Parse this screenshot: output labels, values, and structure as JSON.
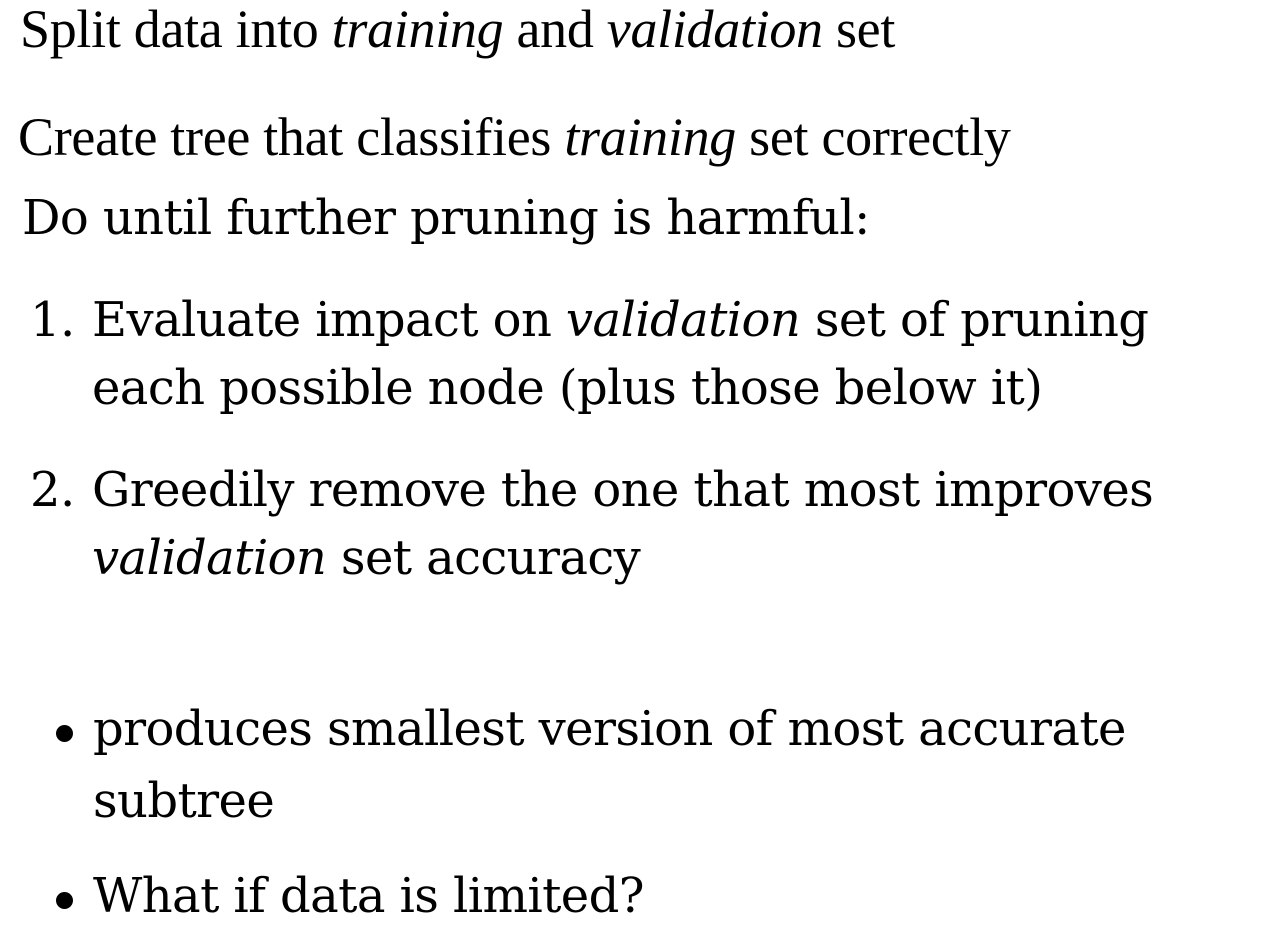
{
  "line1": {
    "a": "Split data into ",
    "b": "training",
    "c": " and ",
    "d": "validation",
    "e": " set"
  },
  "line2": {
    "a": "Create tree that classifies ",
    "b": "training",
    "c": " set correctly"
  },
  "line3": "Do until further pruning is harmful:",
  "steps": [
    {
      "number": "1.",
      "line1_a": "Evaluate impact on ",
      "line1_b": "validation",
      "line1_c": " set of pruning",
      "line2": "each possible node (plus those below it)"
    },
    {
      "number": "2.",
      "line1": "Greedily remove the one that most improves",
      "line2_a": "validation",
      "line2_b": " set accuracy"
    }
  ],
  "bullets": [
    {
      "line1": "produces smallest version of most accurate",
      "line2": "subtree"
    },
    {
      "line1": "What if data is limited?"
    }
  ]
}
